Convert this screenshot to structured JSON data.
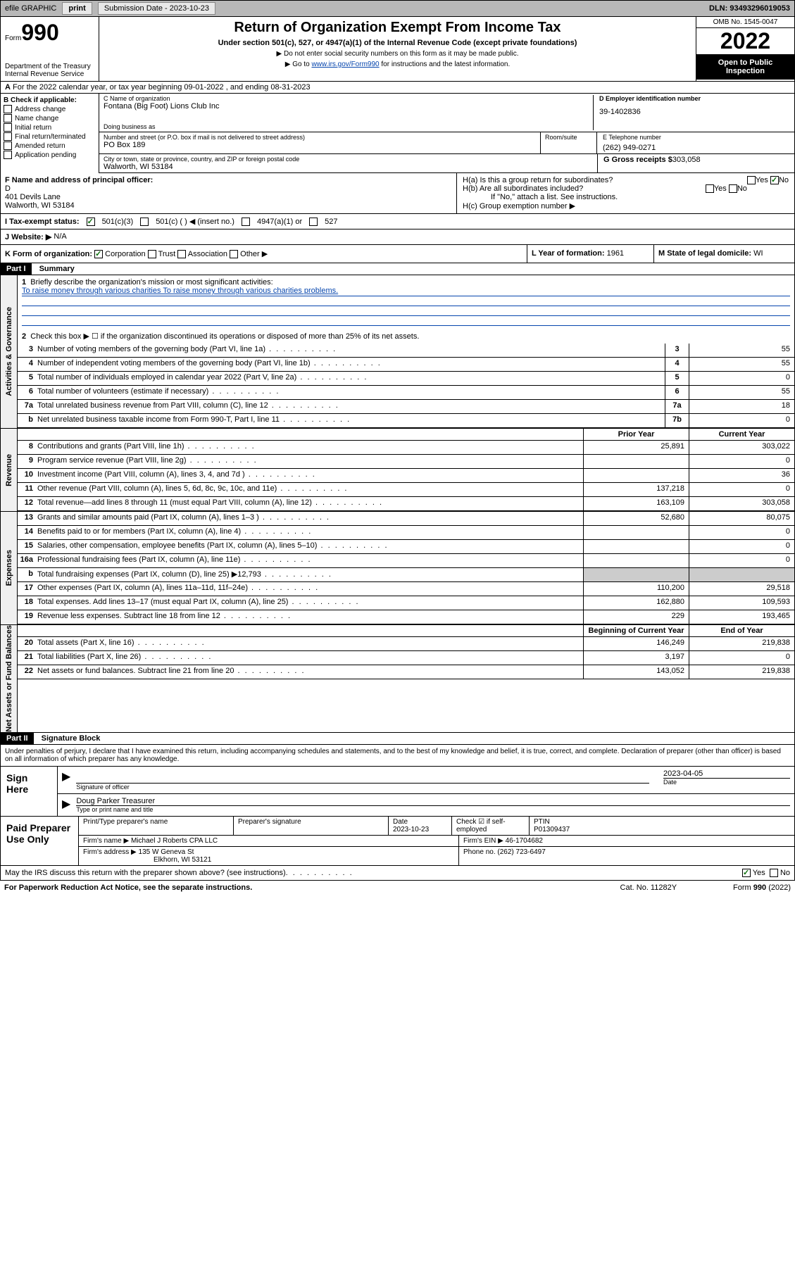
{
  "header_bar": {
    "efile": "efile GRAPHIC",
    "print": "print",
    "sub_label": "Submission Date - ",
    "sub_date": "2023-10-23",
    "dln": "DLN: 93493296019053"
  },
  "form_header": {
    "form": "Form",
    "num": "990",
    "dept": "Department of the Treasury Internal Revenue Service",
    "title": "Return of Organization Exempt From Income Tax",
    "subtitle": "Under section 501(c), 527, or 4947(a)(1) of the Internal Revenue Code (except private foundations)",
    "note1": "▶ Do not enter social security numbers on this form as it may be made public.",
    "note2_pre": "▶ Go to ",
    "note2_link": "www.irs.gov/Form990",
    "note2_post": " for instructions and the latest information.",
    "omb": "OMB No. 1545-0047",
    "year": "2022",
    "inspect": "Open to Public Inspection"
  },
  "tax_year": {
    "text": "For the 2022 calendar year, or tax year beginning 09-01-2022    , and ending 08-31-2023"
  },
  "section_b": {
    "label": "B Check if applicable:",
    "addr_change": "Address change",
    "name_change": "Name change",
    "initial": "Initial return",
    "final": "Final return/terminated",
    "amended": "Amended return",
    "app_pending": "Application pending"
  },
  "section_c": {
    "name_label": "C Name of organization",
    "name": "Fontana (Big Foot) Lions Club Inc",
    "dba_label": "Doing business as",
    "addr_label": "Number and street (or P.O. box if mail is not delivered to street address)",
    "addr": "PO Box 189",
    "room_label": "Room/suite",
    "city_label": "City or town, state or province, country, and ZIP or foreign postal code",
    "city": "Walworth, WI  53184"
  },
  "section_d": {
    "label": "D Employer identification number",
    "ein": "39-1402836"
  },
  "section_e": {
    "label": "E Telephone number",
    "phone": "(262) 949-0271"
  },
  "section_g": {
    "label": "G Gross receipts $",
    "amount": "303,058"
  },
  "section_f": {
    "label": "F  Name and address of principal officer:",
    "name": "D",
    "addr1": "401 Devils Lane",
    "addr2": "Walworth, WI  53184"
  },
  "section_h": {
    "ha": "H(a)  Is this a group return for subordinates?",
    "hb": "H(b)  Are all subordinates included?",
    "hb_note": "If \"No,\" attach a list. See instructions.",
    "hc": "H(c)  Group exemption number ▶",
    "yes": "Yes",
    "no": "No"
  },
  "section_i": {
    "label": "I    Tax-exempt status:",
    "c3": "501(c)(3)",
    "c": "501(c) (  ) ◀ (insert no.)",
    "a1": "4947(a)(1) or",
    "s527": "527"
  },
  "section_j": {
    "label": "J   Website: ▶",
    "value": "N/A"
  },
  "section_k": {
    "label": "K Form of organization:",
    "corp": "Corporation",
    "trust": "Trust",
    "assoc": "Association",
    "other": "Other ▶"
  },
  "section_l": {
    "label": "L Year of formation:",
    "year": "1961"
  },
  "section_m": {
    "label": "M State of legal domicile:",
    "state": "WI"
  },
  "part1": {
    "header": "Part I",
    "title": "Summary"
  },
  "governance": {
    "label": "Activities & Governance",
    "line1": "Briefly describe the organization's mission or most significant activities:",
    "mission": "To raise money through various charities To raise money through various charities problems.",
    "line2": "Check this box ▶ ☐  if the organization discontinued its operations or disposed of more than 25% of its net assets.",
    "rows": [
      {
        "num": "3",
        "desc": "Number of voting members of the governing body (Part VI, line 1a)",
        "box": "3",
        "val": "55"
      },
      {
        "num": "4",
        "desc": "Number of independent voting members of the governing body (Part VI, line 1b)",
        "box": "4",
        "val": "55"
      },
      {
        "num": "5",
        "desc": "Total number of individuals employed in calendar year 2022 (Part V, line 2a)",
        "box": "5",
        "val": "0"
      },
      {
        "num": "6",
        "desc": "Total number of volunteers (estimate if necessary)",
        "box": "6",
        "val": "55"
      },
      {
        "num": "7a",
        "desc": "Total unrelated business revenue from Part VIII, column (C), line 12",
        "box": "7a",
        "val": "18"
      },
      {
        "num": "b",
        "desc": "Net unrelated business taxable income from Form 990-T, Part I, line 11",
        "box": "7b",
        "val": "0"
      }
    ]
  },
  "revenue": {
    "label": "Revenue",
    "prior_h": "Prior Year",
    "curr_h": "Current Year",
    "rows": [
      {
        "num": "8",
        "desc": "Contributions and grants (Part VIII, line 1h)",
        "prior": "25,891",
        "curr": "303,022"
      },
      {
        "num": "9",
        "desc": "Program service revenue (Part VIII, line 2g)",
        "prior": "",
        "curr": "0"
      },
      {
        "num": "10",
        "desc": "Investment income (Part VIII, column (A), lines 3, 4, and 7d )",
        "prior": "",
        "curr": "36"
      },
      {
        "num": "11",
        "desc": "Other revenue (Part VIII, column (A), lines 5, 6d, 8c, 9c, 10c, and 11e)",
        "prior": "137,218",
        "curr": "0"
      },
      {
        "num": "12",
        "desc": "Total revenue—add lines 8 through 11 (must equal Part VIII, column (A), line 12)",
        "prior": "163,109",
        "curr": "303,058"
      }
    ]
  },
  "expenses": {
    "label": "Expenses",
    "rows": [
      {
        "num": "13",
        "desc": "Grants and similar amounts paid (Part IX, column (A), lines 1–3 )",
        "prior": "52,680",
        "curr": "80,075"
      },
      {
        "num": "14",
        "desc": "Benefits paid to or for members (Part IX, column (A), line 4)",
        "prior": "",
        "curr": "0"
      },
      {
        "num": "15",
        "desc": "Salaries, other compensation, employee benefits (Part IX, column (A), lines 5–10)",
        "prior": "",
        "curr": "0"
      },
      {
        "num": "16a",
        "desc": "Professional fundraising fees (Part IX, column (A), line 11e)",
        "prior": "",
        "curr": "0"
      },
      {
        "num": "b",
        "desc": "Total fundraising expenses (Part IX, column (D), line 25) ▶12,793",
        "prior": "shade",
        "curr": "shade"
      },
      {
        "num": "17",
        "desc": "Other expenses (Part IX, column (A), lines 11a–11d, 11f–24e)",
        "prior": "110,200",
        "curr": "29,518"
      },
      {
        "num": "18",
        "desc": "Total expenses. Add lines 13–17 (must equal Part IX, column (A), line 25)",
        "prior": "162,880",
        "curr": "109,593"
      },
      {
        "num": "19",
        "desc": "Revenue less expenses. Subtract line 18 from line 12",
        "prior": "229",
        "curr": "193,465"
      }
    ]
  },
  "net_assets": {
    "label": "Net Assets or Fund Balances",
    "begin_h": "Beginning of Current Year",
    "end_h": "End of Year",
    "rows": [
      {
        "num": "20",
        "desc": "Total assets (Part X, line 16)",
        "prior": "146,249",
        "curr": "219,838"
      },
      {
        "num": "21",
        "desc": "Total liabilities (Part X, line 26)",
        "prior": "3,197",
        "curr": "0"
      },
      {
        "num": "22",
        "desc": "Net assets or fund balances. Subtract line 21 from line 20",
        "prior": "143,052",
        "curr": "219,838"
      }
    ]
  },
  "part2": {
    "header": "Part II",
    "title": "Signature Block"
  },
  "sig": {
    "penalties": "Under penalties of perjury, I declare that I have examined this return, including accompanying schedules and statements, and to the best of my knowledge and belief, it is true, correct, and complete. Declaration of preparer (other than officer) is based on all information of which preparer has any knowledge.",
    "sign_here": "Sign Here",
    "sig_officer": "Signature of officer",
    "date": "Date",
    "sig_date": "2023-04-05",
    "name_title": "Doug Parker  Treasurer",
    "type_name": "Type or print name and title"
  },
  "prep": {
    "label": "Paid Preparer Use Only",
    "print_name_h": "Print/Type preparer's name",
    "prep_sig_h": "Preparer's signature",
    "date_h": "Date",
    "date": "2023-10-23",
    "check_h": "Check ☑ if self-employed",
    "ptin_h": "PTIN",
    "ptin": "P01309437",
    "firm_name_h": "Firm's name    ▶",
    "firm_name": "Michael J Roberts CPA LLC",
    "firm_ein_h": "Firm's EIN ▶",
    "firm_ein": "46-1704682",
    "firm_addr_h": "Firm's address ▶",
    "firm_addr1": "135 W Geneva St",
    "firm_addr2": "Elkhorn, WI  53121",
    "firm_phone_h": "Phone no.",
    "firm_phone": "(262) 723-6497"
  },
  "footer": {
    "discuss": "May the IRS discuss this return with the preparer shown above? (see instructions)",
    "yes": "Yes",
    "no": "No",
    "paperwork": "For Paperwork Reduction Act Notice, see the separate instructions.",
    "cat": "Cat. No. 11282Y",
    "form": "Form 990 (2022)"
  }
}
